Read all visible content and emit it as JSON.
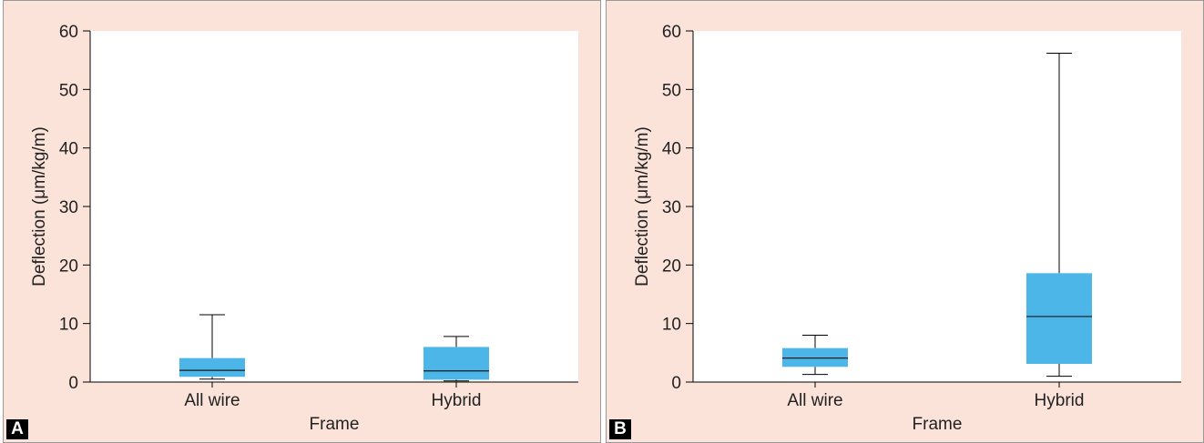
{
  "colors": {
    "panel_bg": "#fbe3da",
    "plot_bg": "#ffffff",
    "box_fill": "#4db6e8",
    "line": "#000000"
  },
  "chart_data": [
    {
      "panel_label": "A",
      "type": "box",
      "xlabel": "Frame",
      "ylabel": "Deflection (μm/kg/m)",
      "ylim": [
        0,
        60
      ],
      "yticks": [
        "0",
        "10",
        "20",
        "30",
        "40",
        "50",
        "60"
      ],
      "categories": [
        "All wire",
        "Hybrid"
      ],
      "boxes": [
        {
          "category": "All wire",
          "min": 0.5,
          "q1": 0.9,
          "median": 2.0,
          "q3": 4.1,
          "max": 11.5
        },
        {
          "category": "Hybrid",
          "min": 0.2,
          "q1": 0.4,
          "median": 1.9,
          "q3": 6.0,
          "max": 7.8
        }
      ],
      "grid": false
    },
    {
      "panel_label": "B",
      "type": "box",
      "xlabel": "Frame",
      "ylabel": "Deflection (μm/kg/m)",
      "ylim": [
        0,
        60
      ],
      "yticks": [
        "0",
        "10",
        "20",
        "30",
        "40",
        "50",
        "60"
      ],
      "categories": [
        "All wire",
        "Hybrid"
      ],
      "boxes": [
        {
          "category": "All wire",
          "min": 1.3,
          "q1": 2.6,
          "median": 4.1,
          "q3": 5.8,
          "max": 8.0
        },
        {
          "category": "Hybrid",
          "min": 1.0,
          "q1": 3.1,
          "median": 11.2,
          "q3": 18.6,
          "max": 56.2
        }
      ],
      "grid": false
    }
  ]
}
